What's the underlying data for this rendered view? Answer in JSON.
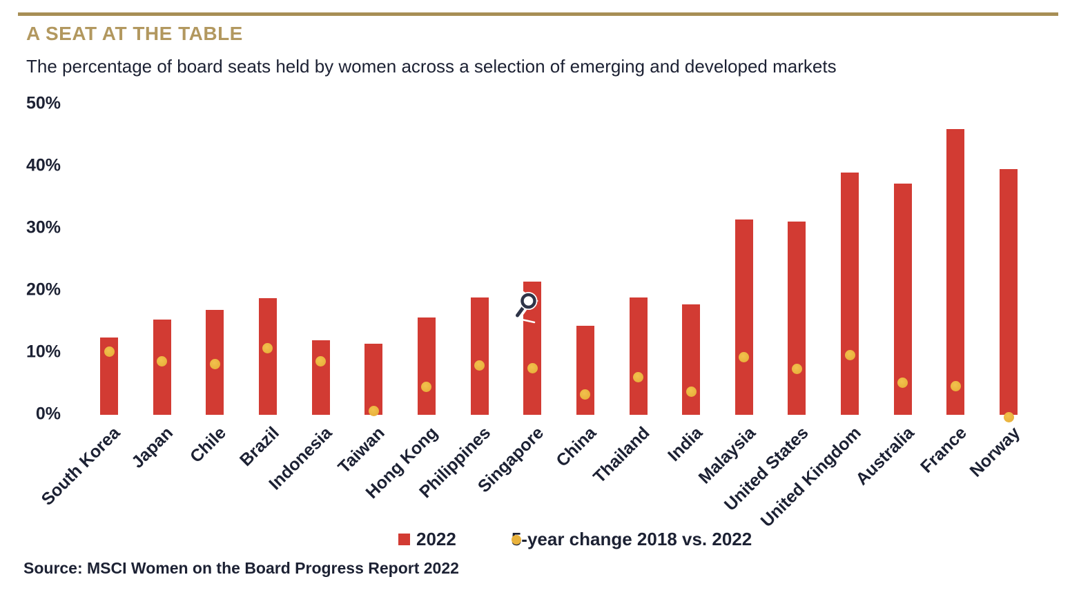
{
  "header": {
    "title": "A SEAT AT THE TABLE",
    "subtitle": "The percentage of board seats held by women across a selection of emerging and developed markets"
  },
  "legend": {
    "items": [
      {
        "label": "2022",
        "marker": "square",
        "color": "#d23b33"
      },
      {
        "label": "5-year change 2018 vs. 2022",
        "marker": "dot",
        "color": "#e9b23c"
      }
    ]
  },
  "source": "Source: MSCI Women on the Board Progress Report 2022",
  "colors": {
    "bar_red": "#d23b33",
    "dot_gold": "#e9b23c",
    "dot_gold_highlight": "#f2c14e",
    "rule_gold": "#a78e55",
    "title_gold": "#b2985f",
    "text_navy": "#1c2133"
  },
  "cursor": {
    "icon": "zoom-cursor",
    "over_bar": "Singapore"
  },
  "chart_data": {
    "type": "bar",
    "title": "A SEAT AT THE TABLE",
    "subtitle": "The percentage of board seats held by women across a selection of emerging and developed markets",
    "categories": [
      "South Korea",
      "Japan",
      "Chile",
      "Brazil",
      "Indonesia",
      "Taiwan",
      "Hong Kong",
      "Philippines",
      "Singapore",
      "China",
      "Thailand",
      "India",
      "Malaysia",
      "United States",
      "United Kingdom",
      "Australia",
      "France",
      "Norway"
    ],
    "series": [
      {
        "name": "2022",
        "type": "bar",
        "color": "#d23b33",
        "values": [
          12.5,
          15.3,
          16.9,
          18.8,
          12.0,
          11.5,
          15.7,
          18.9,
          21.4,
          14.3,
          18.9,
          17.8,
          31.5,
          31.1,
          39.0,
          37.2,
          46.0,
          39.6
        ]
      },
      {
        "name": "5-year change 2018 vs. 2022",
        "type": "scatter",
        "color": "#e9b23c",
        "values": [
          10.2,
          8.6,
          8.2,
          10.7,
          8.6,
          0.6,
          4.5,
          7.9,
          7.5,
          3.3,
          6.1,
          3.7,
          9.3,
          7.4,
          9.6,
          5.2,
          4.6,
          -0.4
        ]
      }
    ],
    "ylabel": "",
    "xlabel": "",
    "ylim": [
      0,
      50
    ],
    "yticks": [
      0,
      10,
      20,
      30,
      40,
      50
    ],
    "ytick_format": "percent",
    "grid": false,
    "axis_lines": false,
    "xlabel_rotation": -45,
    "legend_position": "bottom",
    "source": "Source: MSCI Women on the Board Progress Report 2022"
  }
}
